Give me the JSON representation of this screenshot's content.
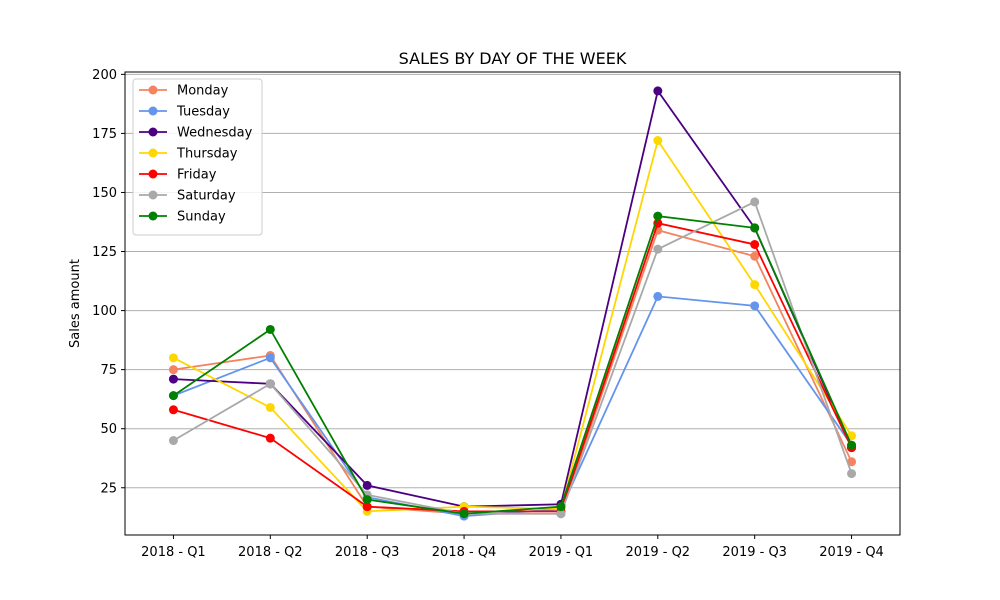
{
  "chart_data": {
    "type": "line",
    "title": "SALES BY DAY OF THE WEEK",
    "xlabel": "",
    "ylabel": "Sales amount",
    "ylim": [
      5,
      201
    ],
    "yticks": [
      25,
      50,
      75,
      100,
      125,
      150,
      175,
      200
    ],
    "grid": "horizontal",
    "legend_position": "top-left",
    "categories": [
      "2018 - Q1",
      "2018 - Q2",
      "2018 - Q3",
      "2018 - Q4",
      "2019 - Q1",
      "2019 - Q2",
      "2019 - Q3",
      "2019 - Q4"
    ],
    "series": [
      {
        "name": "Monday",
        "color": "#f4845f",
        "values": [
          75,
          81,
          17,
          14,
          14,
          134,
          123,
          36
        ]
      },
      {
        "name": "Tuesday",
        "color": "#6495ed",
        "values": [
          64,
          80,
          21,
          13,
          16,
          106,
          102,
          43
        ]
      },
      {
        "name": "Wednesday",
        "color": "#4b0082",
        "values": [
          71,
          69,
          26,
          17,
          18,
          193,
          135,
          42
        ]
      },
      {
        "name": "Thursday",
        "color": "#ffd700",
        "values": [
          80,
          59,
          15,
          17,
          16,
          172,
          111,
          47
        ]
      },
      {
        "name": "Friday",
        "color": "#ff0000",
        "values": [
          58,
          46,
          17,
          15,
          15,
          137,
          128,
          42
        ]
      },
      {
        "name": "Saturday",
        "color": "#a9a9a9",
        "values": [
          45,
          69,
          22,
          14,
          14,
          126,
          146,
          31
        ]
      },
      {
        "name": "Sunday",
        "color": "#008000",
        "values": [
          64,
          92,
          20,
          14,
          17,
          140,
          135,
          43
        ]
      }
    ]
  }
}
